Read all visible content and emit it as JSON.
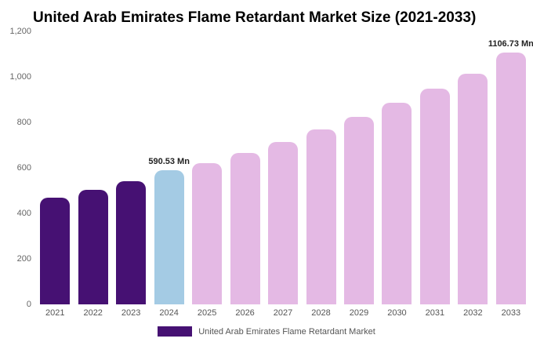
{
  "title": "United Arab Emirates Flame Retardant Market Size (2021-2033)",
  "legend": {
    "label": "United Arab Emirates Flame Retardant Market",
    "swatch_color": "#461173"
  },
  "colors": {
    "dark_purple": "#461173",
    "light_blue": "#a4cbe4",
    "light_pink": "#e4b9e4",
    "axis_text": "#666666",
    "value_label_text": "#222222"
  },
  "chart_data": {
    "type": "bar",
    "title": "United Arab Emirates Flame Retardant Market Size (2021-2033)",
    "categories": [
      "2021",
      "2022",
      "2023",
      "2024",
      "2025",
      "2026",
      "2027",
      "2028",
      "2029",
      "2030",
      "2031",
      "2032",
      "2033"
    ],
    "values": [
      470,
      505,
      540,
      590.53,
      620,
      665,
      715,
      770,
      825,
      885,
      950,
      1015,
      1106.73
    ],
    "bar_colors": [
      "#461173",
      "#461173",
      "#461173",
      "#a4cbe4",
      "#e4b9e4",
      "#e4b9e4",
      "#e4b9e4",
      "#e4b9e4",
      "#e4b9e4",
      "#e4b9e4",
      "#e4b9e4",
      "#e4b9e4",
      "#e4b9e4"
    ],
    "point_labels": [
      "",
      "",
      "",
      "590.53 Mn",
      "",
      "",
      "",
      "",
      "",
      "",
      "",
      "",
      "1106.73 Mn"
    ],
    "xlabel": "",
    "ylabel": "",
    "ylim": [
      0,
      1200
    ],
    "yticks": [
      "0",
      "200",
      "400",
      "600",
      "800",
      "1,000",
      "1,200"
    ],
    "grid": false,
    "legend_position": "bottom",
    "legend_entries": [
      "United Arab Emirates Flame Retardant Market"
    ]
  }
}
